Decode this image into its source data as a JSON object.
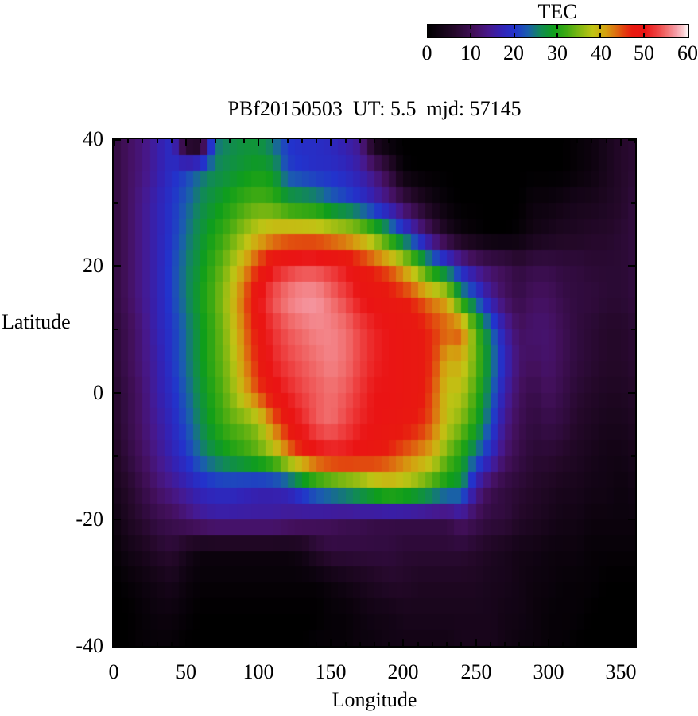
{
  "colorbar": {
    "title": "TEC",
    "tick_labels": [
      "0",
      "10",
      "20",
      "30",
      "40",
      "50",
      "60"
    ],
    "tick_values": [
      0,
      10,
      20,
      30,
      40,
      50,
      60
    ]
  },
  "plot": {
    "title": "PBf20150503  UT: 5.5  mjd: 57145",
    "xlabel": "Longitude",
    "ylabel": "Latitude",
    "x_tick_labels": [
      "0",
      "50",
      "100",
      "150",
      "200",
      "250",
      "300",
      "350"
    ],
    "y_tick_labels": [
      "40",
      "20",
      "0",
      "-20",
      "-40"
    ]
  },
  "chart_data": {
    "type": "heatmap",
    "title": "PBf20150503  UT: 5.5  mjd: 57145",
    "xlabel": "Longitude",
    "ylabel": "Latitude",
    "colorbar_label": "TEC",
    "xlim": [
      0,
      360
    ],
    "ylim": [
      -40,
      40
    ],
    "zlim": [
      0,
      60
    ],
    "grid": false,
    "x_tick_values": [
      0,
      50,
      100,
      150,
      200,
      250,
      300,
      350
    ],
    "x_minor_step": 10,
    "y_tick_values": [
      40,
      20,
      0,
      -20,
      -40
    ],
    "y_minor_values": [
      30,
      10,
      -10,
      -30
    ],
    "lon_nodes_step": 10,
    "lat_nodes_step": -5,
    "lat_start": 40,
    "values_note": "TEC values on nodes: rows are latitudes 40..-40 step -5, columns are longitudes 0..360 step 10",
    "values": [
      [
        8,
        11,
        13,
        16,
        19,
        2,
        0,
        24,
        26,
        27,
        27,
        24,
        20,
        19,
        19,
        18,
        16,
        14,
        2,
        0,
        0,
        0,
        0,
        0,
        0,
        0,
        0,
        0,
        0,
        0,
        0,
        0,
        1,
        2,
        4,
        6,
        7
      ],
      [
        8,
        11,
        13,
        16,
        19,
        21,
        24,
        26,
        27,
        28,
        29,
        28,
        21,
        20,
        19,
        19,
        18,
        16,
        13,
        8,
        1,
        0,
        0,
        0,
        0,
        0,
        0,
        0,
        0,
        0,
        0,
        0,
        1,
        2,
        4,
        6,
        7
      ],
      [
        8,
        11,
        14,
        17,
        20,
        23,
        26,
        28,
        30,
        32,
        33,
        32,
        29,
        28,
        27,
        24,
        22,
        20,
        17,
        14,
        10,
        6,
        3,
        1,
        0,
        0,
        0,
        0,
        0,
        2,
        2,
        3,
        4,
        4,
        5,
        6,
        8
      ],
      [
        8,
        11,
        14,
        17,
        20,
        24,
        27,
        30,
        33,
        36,
        39,
        41,
        42,
        42,
        42,
        41,
        40,
        38,
        34,
        28,
        22,
        16,
        10,
        5,
        2,
        1,
        0,
        0,
        1,
        3,
        4,
        5,
        5,
        6,
        6,
        7,
        8
      ],
      [
        8,
        11,
        14,
        17,
        21,
        25,
        28,
        32,
        36,
        41,
        46,
        50,
        52,
        53,
        53,
        52,
        50,
        48,
        46,
        44,
        40,
        34,
        27,
        22,
        17,
        13,
        11,
        10,
        8,
        9,
        9,
        8,
        8,
        7,
        7,
        7,
        8
      ],
      [
        8,
        11,
        14,
        17,
        21,
        25,
        29,
        33,
        38,
        44,
        50,
        54,
        56,
        57,
        57,
        55,
        53,
        50,
        49,
        48,
        47,
        45,
        42,
        40,
        28,
        22,
        15,
        11,
        9,
        11,
        11,
        9,
        8,
        8,
        7,
        7,
        8
      ],
      [
        7,
        10,
        13,
        17,
        20,
        24,
        28,
        32,
        37,
        43,
        48,
        52,
        54,
        55,
        56,
        56,
        55,
        53,
        51,
        50,
        49,
        48,
        46,
        44,
        45,
        33,
        24,
        16,
        11,
        12,
        12,
        10,
        8,
        7,
        6,
        6,
        7
      ],
      [
        7,
        10,
        13,
        16,
        20,
        24,
        28,
        32,
        36,
        42,
        47,
        51,
        53,
        54,
        55,
        56,
        55,
        53,
        51,
        50,
        49,
        48,
        46,
        40,
        40,
        34,
        26,
        18,
        12,
        11,
        12,
        10,
        8,
        7,
        6,
        6,
        7
      ],
      [
        6,
        9,
        12,
        16,
        19,
        23,
        27,
        31,
        35,
        40,
        45,
        49,
        51,
        53,
        54,
        55,
        54,
        52,
        50,
        50,
        49,
        48,
        45,
        38,
        38,
        32,
        24,
        16,
        11,
        9,
        11,
        9,
        7,
        6,
        5,
        5,
        6
      ],
      [
        6,
        9,
        12,
        15,
        18,
        22,
        26,
        30,
        33,
        34,
        36,
        43,
        48,
        51,
        54,
        55,
        53,
        51,
        50,
        49,
        48,
        47,
        44,
        38,
        35,
        30,
        22,
        14,
        10,
        8,
        9,
        8,
        6,
        5,
        4,
        4,
        5
      ],
      [
        5,
        8,
        11,
        14,
        17,
        20,
        24,
        27,
        29,
        31,
        33,
        36,
        42,
        46,
        49,
        50,
        50,
        49,
        48,
        46,
        44,
        42,
        40,
        34,
        30,
        24,
        18,
        12,
        9,
        7,
        7,
        6,
        5,
        4,
        3,
        3,
        4
      ],
      [
        4,
        6,
        9,
        12,
        14,
        16,
        18,
        19,
        19,
        18,
        17,
        17,
        18,
        22,
        26,
        28,
        30,
        32,
        35,
        37,
        36,
        34,
        31,
        28,
        27,
        15,
        10,
        8,
        7,
        6,
        5,
        4,
        4,
        3,
        3,
        2,
        3
      ],
      [
        2,
        5,
        7,
        9,
        10,
        12,
        14,
        15,
        15,
        15,
        15,
        15,
        14,
        13,
        12,
        11,
        10,
        10,
        9,
        9,
        9,
        9,
        9,
        9,
        12,
        10,
        8,
        8,
        6,
        5,
        4,
        3,
        3,
        2,
        2,
        2,
        2
      ],
      [
        1,
        3,
        4,
        6,
        7,
        4,
        2,
        2,
        2,
        2,
        2,
        2,
        2,
        3,
        6,
        8,
        8,
        8,
        8,
        8,
        7,
        7,
        7,
        7,
        7,
        6,
        5,
        4,
        3,
        3,
        2,
        2,
        2,
        1,
        1,
        1,
        1
      ],
      [
        0,
        1,
        2,
        3,
        4,
        2,
        1,
        1,
        1,
        1,
        1,
        1,
        1,
        1,
        1,
        2,
        3,
        4,
        5,
        6,
        6,
        5,
        5,
        5,
        5,
        5,
        4,
        4,
        3,
        2,
        2,
        1,
        1,
        1,
        0,
        0,
        0
      ],
      [
        0,
        0,
        1,
        2,
        2,
        1,
        0,
        0,
        0,
        0,
        0,
        0,
        0,
        0,
        0,
        1,
        1,
        2,
        3,
        3,
        4,
        4,
        4,
        4,
        4,
        4,
        4,
        3,
        3,
        2,
        1,
        1,
        1,
        0,
        0,
        0,
        0
      ],
      [
        0,
        0,
        1,
        1,
        1,
        0,
        0,
        0,
        0,
        0,
        0,
        0,
        0,
        0,
        1,
        1,
        1,
        2,
        2,
        3,
        3,
        3,
        3,
        3,
        4,
        4,
        4,
        3,
        2,
        2,
        1,
        1,
        0,
        0,
        0,
        0,
        0
      ]
    ],
    "palette_stops": [
      [
        0,
        "#000000"
      ],
      [
        6,
        "#240829"
      ],
      [
        11,
        "#44105e"
      ],
      [
        14,
        "#47188c"
      ],
      [
        17,
        "#3322b4"
      ],
      [
        20,
        "#2233cc"
      ],
      [
        23,
        "#1a5dae"
      ],
      [
        26,
        "#118a55"
      ],
      [
        29,
        "#0f9e1a"
      ],
      [
        32,
        "#3faa12"
      ],
      [
        35,
        "#82b812"
      ],
      [
        38,
        "#c0c414"
      ],
      [
        41,
        "#d4a010"
      ],
      [
        43,
        "#dc7410"
      ],
      [
        45,
        "#e2440f"
      ],
      [
        47,
        "#e81a10"
      ],
      [
        50,
        "#ea1414"
      ],
      [
        53,
        "#ee4444"
      ],
      [
        55,
        "#f17070"
      ],
      [
        57,
        "#f59aa4"
      ],
      [
        59,
        "#fbd3d6"
      ],
      [
        60,
        "#ffffff"
      ]
    ],
    "legend_position": "top-right colorbar"
  }
}
